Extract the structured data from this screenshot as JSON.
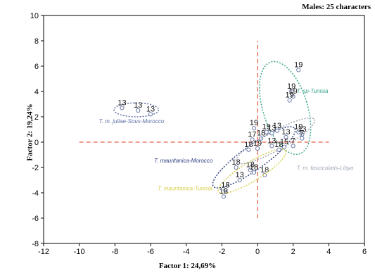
{
  "chart_data": {
    "type": "scatter",
    "title": "Males: 25 characters",
    "xlabel": "Factor 1: 24,69%",
    "ylabel": "Factor 2: 19,24%",
    "xlim": [
      -12,
      6
    ],
    "ylim": [
      -8,
      10
    ],
    "xticks": [
      "-12",
      "-10",
      "-8",
      "-6",
      "-4",
      "-2",
      "0",
      "2",
      "4",
      "6"
    ],
    "yticks": [
      "-8",
      "-6",
      "-4",
      "-2",
      "0",
      "2",
      "4",
      "6",
      "8",
      "10"
    ],
    "grid": false,
    "reference_lines": {
      "x": 0,
      "y": 0,
      "x_from": -10,
      "x_to": 4,
      "y_from": -6,
      "y_to": 8,
      "color": "#e8806a"
    },
    "groups": [
      {
        "name": "T. m. juliae-Sous-Morocco",
        "color": "#6070a8",
        "label_pos": [
          -8.9,
          1.5
        ],
        "ellipse": {
          "cx": -6.8,
          "cy": 2.55,
          "rx": 1.25,
          "ry": 0.55,
          "angle": 0
        },
        "points": [
          {
            "x": -7.6,
            "y": 2.7,
            "label": "13"
          },
          {
            "x": -6.7,
            "y": 2.5,
            "label": "13"
          },
          {
            "x": -6.0,
            "y": 2.2,
            "label": "13"
          }
        ]
      },
      {
        "name": "T. sp-Tunisia",
        "color": "#40a890",
        "label_pos": [
          2.2,
          3.9
        ],
        "ellipse": {
          "cx": 1.55,
          "cy": 2.7,
          "rx": 1.25,
          "ry": 3.8,
          "angle": 0.3
        },
        "points": [
          {
            "x": 2.3,
            "y": 5.7,
            "label": "19"
          },
          {
            "x": 1.9,
            "y": 4.0,
            "label": "19"
          },
          {
            "x": 2.0,
            "y": 3.6,
            "label": "19"
          },
          {
            "x": 1.8,
            "y": 3.3,
            "label": "19"
          }
        ]
      },
      {
        "name": "T. mauritanica-Morocco",
        "color": "#304080",
        "label_pos": [
          -5.8,
          -1.6
        ],
        "ellipse": {
          "cx": -0.2,
          "cy": -1.2,
          "rx": 2.8,
          "ry": 0.95,
          "angle": 0.62
        },
        "points": [
          {
            "x": -0.2,
            "y": 1.1,
            "label": "19"
          },
          {
            "x": -0.3,
            "y": 0.2,
            "label": "17"
          },
          {
            "x": 0.2,
            "y": 0.3,
            "label": "18"
          },
          {
            "x": -0.5,
            "y": -0.6,
            "label": "18"
          },
          {
            "x": 0.0,
            "y": -0.5,
            "label": "19"
          },
          {
            "x": -1.2,
            "y": -2.0,
            "label": "18"
          },
          {
            "x": -0.4,
            "y": -2.2,
            "label": "18"
          },
          {
            "x": 0.4,
            "y": -2.6,
            "label": "18"
          },
          {
            "x": -1.0,
            "y": -3.0,
            "label": "13"
          }
        ]
      },
      {
        "name": "T. mauritanica-Tunisia",
        "color": "#d8d050",
        "label_pos": [
          -5.6,
          -3.8
        ],
        "ellipse": {
          "cx": -0.3,
          "cy": -2.3,
          "rx": 2.2,
          "ry": 0.75,
          "angle": 0.55
        },
        "points": [
          {
            "x": -1.8,
            "y": -3.8,
            "label": "18"
          },
          {
            "x": -1.9,
            "y": -4.3,
            "label": "18"
          },
          {
            "x": -0.2,
            "y": -2.4,
            "label": "18"
          }
        ]
      },
      {
        "name": "T. m. fasciculatis-Libya",
        "color": "#a0a8b8",
        "label_pos": [
          2.2,
          -2.2
        ],
        "ellipse": {
          "cx": 1.0,
          "cy": 0.1,
          "rx": 2.5,
          "ry": 0.75,
          "angle": 0.5
        },
        "points": [
          {
            "x": 0.5,
            "y": 0.8,
            "label": "19"
          },
          {
            "x": 0.8,
            "y": 0.7,
            "label": "13"
          },
          {
            "x": 1.1,
            "y": 0.9,
            "label": "13"
          },
          {
            "x": 1.6,
            "y": 0.4,
            "label": "13"
          },
          {
            "x": 2.3,
            "y": 0.8,
            "label": "19"
          },
          {
            "x": 2.5,
            "y": 0.6,
            "label": "13"
          },
          {
            "x": 2.5,
            "y": 0.3,
            "label": "7"
          },
          {
            "x": 0.8,
            "y": -0.3,
            "label": "13"
          },
          {
            "x": 1.2,
            "y": -0.6,
            "label": "18"
          },
          {
            "x": 1.5,
            "y": -0.4,
            "label": "15"
          },
          {
            "x": 2.0,
            "y": -0.3,
            "label": "7"
          }
        ]
      }
    ]
  }
}
